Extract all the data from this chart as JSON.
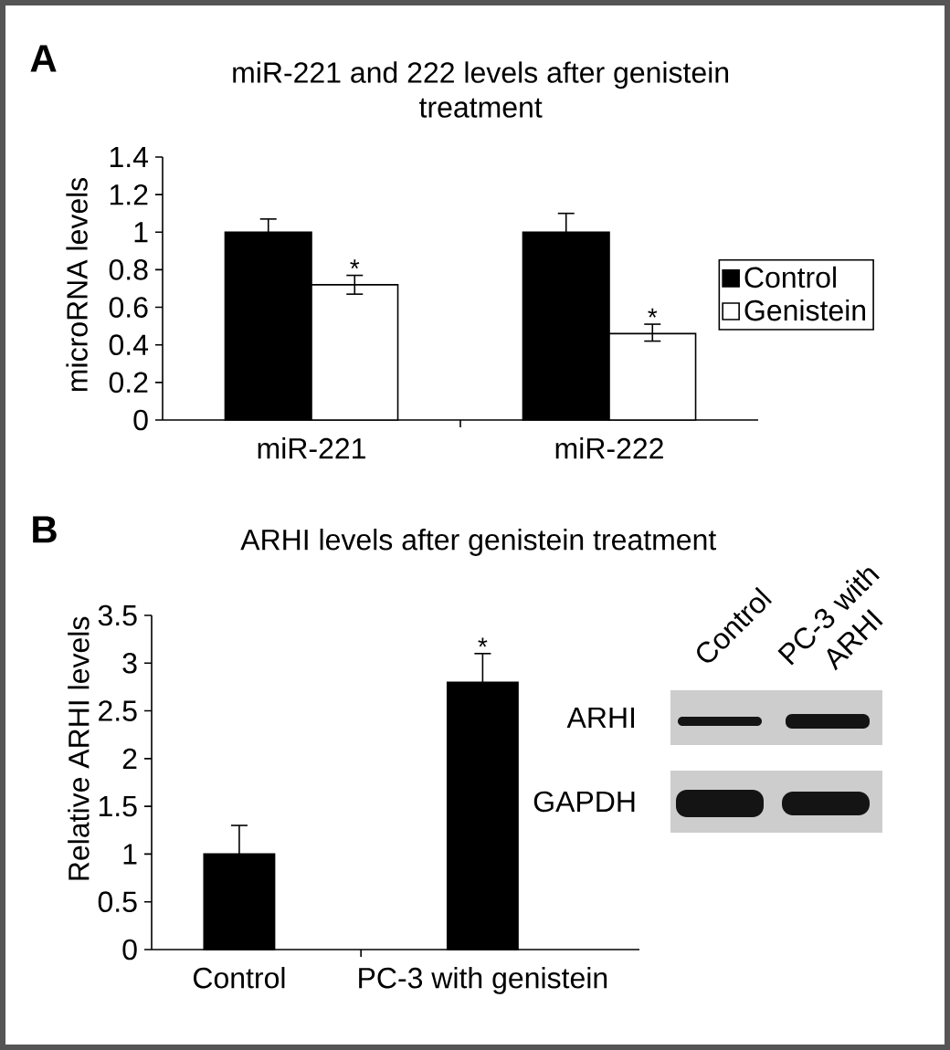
{
  "chart_data": [
    {
      "type": "bar",
      "title": "miR-221 and 222 levels after genistein treatment",
      "ylabel": "microRNA levels",
      "categories": [
        "miR-221",
        "miR-222"
      ],
      "series": [
        {
          "name": "Control",
          "color": "#000000",
          "values": [
            1,
            1
          ],
          "errors": [
            [
              1,
              1.07
            ],
            [
              1,
              1.1
            ]
          ]
        },
        {
          "name": "Genistein",
          "color": "#ffffff",
          "values": [
            0.72,
            0.46
          ],
          "errors": [
            [
              0.67,
              0.77
            ],
            [
              0.42,
              0.51
            ]
          ]
        }
      ],
      "ylim": [
        0,
        1.4
      ],
      "yticks": [
        0,
        0.2,
        0.4,
        0.6,
        0.8,
        1,
        1.2,
        1.4
      ],
      "legend": "right",
      "annotations": [
        "A",
        {
          "text": "*",
          "x": "miR-221",
          "y": 0.77
        },
        {
          "text": "*",
          "x": "miR-222",
          "y": 0.51
        }
      ]
    },
    {
      "type": "bar",
      "title": "ARHI levels after genistein treatment",
      "ylabel": "Relative ARHI levels",
      "categories": [
        "Control",
        "PC-3 with genistein"
      ],
      "values": [
        1,
        2.8
      ],
      "color": "#000000",
      "errors": [
        [
          1,
          1.3
        ],
        [
          2.8,
          3.1
        ]
      ],
      "ylim": [
        0,
        3.5
      ],
      "yticks": [
        0,
        0.5,
        1,
        1.5,
        2,
        2.5,
        3,
        3.5
      ],
      "annotations": [
        "B",
        {
          "text": "*",
          "x": "PC-3 with genistein",
          "y": 3.1
        }
      ]
    },
    {
      "type": "other",
      "annotations": [
        "Control",
        "PC-3 with ARHI",
        "ARHI",
        "GAPDH"
      ]
    }
  ]
}
